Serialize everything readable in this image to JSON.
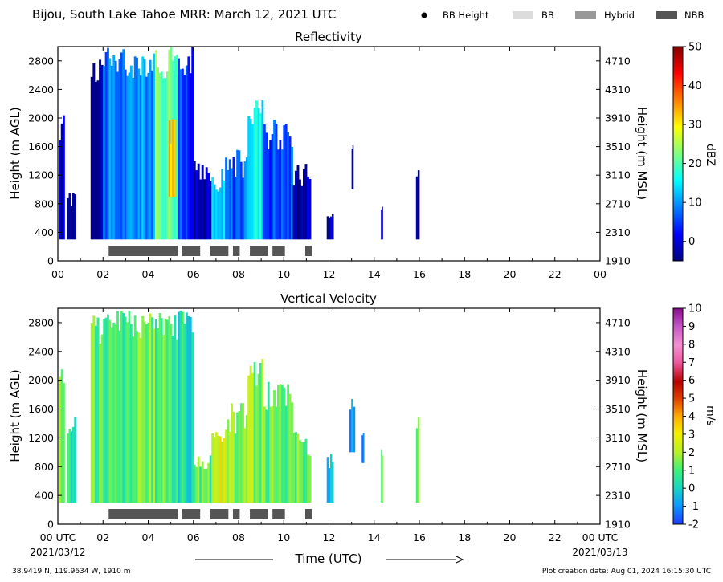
{
  "header": {
    "title": "Bijou, South Lake Tahoe MRR:  March 12, 2021 UTC",
    "legend": [
      {
        "label": "BB Height",
        "symbol": "dot",
        "color": "#000000"
      },
      {
        "label": "BB",
        "symbol": "box",
        "color": "#dcdcdc"
      },
      {
        "label": "Hybrid",
        "symbol": "box",
        "color": "#999999"
      },
      {
        "label": "NBB",
        "symbol": "box",
        "color": "#555555"
      }
    ]
  },
  "footer": {
    "location": "38.9419 N, 119.9634 W, 1910 m",
    "created": "Plot creation date: Aug 01, 2024 16:15:30 UTC",
    "time_label": "Time (UTC)",
    "start_date": "2021/03/12",
    "end_date": "2021/03/13"
  },
  "chart_data": [
    {
      "type": "heatmap",
      "title": "Reflectivity",
      "ylabel": "Height (m AGL)",
      "ylabel_right": "Height (m MSL)",
      "colorbar_label": "dBZ",
      "colorbar_ticks": [
        "0",
        "10",
        "20",
        "30",
        "40",
        "50"
      ],
      "colorbar_range": [
        -5,
        50
      ],
      "xlim": [
        0,
        24
      ],
      "ylim": [
        0,
        3000
      ],
      "x_ticks": [
        "00",
        "02",
        "04",
        "06",
        "08",
        "10",
        "12",
        "14",
        "16",
        "18",
        "20",
        "22",
        "00"
      ],
      "y_ticks": [
        "0",
        "400",
        "800",
        "1200",
        "1600",
        "2000",
        "2400",
        "2800"
      ],
      "y_ticks_right": [
        "1910",
        "2310",
        "2710",
        "3110",
        "3510",
        "3910",
        "4310",
        "4710"
      ],
      "echoes": [
        {
          "start": 0.05,
          "end": 0.3,
          "top": 2100,
          "bottom": 300,
          "value": -2
        },
        {
          "start": 0.4,
          "end": 0.8,
          "top": 1000,
          "bottom": 300,
          "value": -3
        },
        {
          "start": 1.45,
          "end": 2.0,
          "top": 2900,
          "bottom": 300,
          "value": -2
        },
        {
          "start": 2.0,
          "end": 3.2,
          "top": 3000,
          "bottom": 300,
          "value": 8
        },
        {
          "start": 3.2,
          "end": 4.3,
          "top": 3000,
          "bottom": 300,
          "value": 10
        },
        {
          "start": 4.3,
          "end": 5.3,
          "top": 3000,
          "bottom": 300,
          "value": 22
        },
        {
          "start": 4.9,
          "end": 5.2,
          "top": 2000,
          "bottom": 900,
          "value": 33
        },
        {
          "start": 5.3,
          "end": 6.0,
          "top": 3000,
          "bottom": 300,
          "value": 5
        },
        {
          "start": 6.0,
          "end": 6.8,
          "top": 1500,
          "bottom": 300,
          "value": -2
        },
        {
          "start": 6.8,
          "end": 7.4,
          "top": 1300,
          "bottom": 300,
          "value": 12
        },
        {
          "start": 7.4,
          "end": 8.4,
          "top": 1600,
          "bottom": 300,
          "value": 7
        },
        {
          "start": 8.4,
          "end": 9.1,
          "top": 2300,
          "bottom": 300,
          "value": 16
        },
        {
          "start": 9.1,
          "end": 10.4,
          "top": 2000,
          "bottom": 300,
          "value": 6
        },
        {
          "start": 10.4,
          "end": 11.2,
          "top": 1400,
          "bottom": 300,
          "value": -2
        },
        {
          "start": 11.9,
          "end": 12.2,
          "top": 700,
          "bottom": 300,
          "value": -2
        },
        {
          "start": 13.0,
          "end": 13.08,
          "top": 1700,
          "bottom": 1000,
          "value": -3
        },
        {
          "start": 14.3,
          "end": 14.38,
          "top": 850,
          "bottom": 300,
          "value": -3
        },
        {
          "start": 15.85,
          "end": 16.0,
          "top": 1300,
          "bottom": 300,
          "value": -2
        }
      ],
      "bb_types": [
        {
          "start": 2.25,
          "end": 5.3,
          "type": "NBB"
        },
        {
          "start": 5.5,
          "end": 6.3,
          "type": "NBB"
        },
        {
          "start": 6.75,
          "end": 7.55,
          "type": "NBB"
        },
        {
          "start": 7.75,
          "end": 8.05,
          "type": "NBB"
        },
        {
          "start": 8.5,
          "end": 9.3,
          "type": "NBB"
        },
        {
          "start": 9.5,
          "end": 10.05,
          "type": "NBB"
        },
        {
          "start": 10.95,
          "end": 11.25,
          "type": "NBB"
        }
      ]
    },
    {
      "type": "heatmap",
      "title": "Vertical Velocity",
      "ylabel": "Height (m AGL)",
      "ylabel_right": "Height (m MSL)",
      "colorbar_label": "m/s",
      "colorbar_ticks": [
        "-2",
        "-1",
        "0",
        "1",
        "2",
        "3",
        "4",
        "5",
        "6",
        "7",
        "8",
        "9",
        "10"
      ],
      "colorbar_range": [
        -2,
        10
      ],
      "xlim": [
        0,
        24
      ],
      "ylim": [
        0,
        3000
      ],
      "x_ticks": [
        "00 UTC",
        "02",
        "04",
        "06",
        "08",
        "10",
        "12",
        "14",
        "16",
        "18",
        "20",
        "22",
        "00 UTC"
      ],
      "y_ticks": [
        "0",
        "400",
        "800",
        "1200",
        "1600",
        "2000",
        "2400",
        "2800"
      ],
      "y_ticks_right": [
        "1910",
        "2310",
        "2710",
        "3110",
        "3510",
        "3910",
        "4310",
        "4710"
      ],
      "echoes": [
        {
          "start": 0.05,
          "end": 0.3,
          "top": 2200,
          "bottom": 300,
          "value": 1.3
        },
        {
          "start": 0.4,
          "end": 0.8,
          "top": 1500,
          "bottom": 300,
          "value": 0.6
        },
        {
          "start": 1.45,
          "end": 2.0,
          "top": 2900,
          "bottom": 300,
          "value": 1.2
        },
        {
          "start": 2.0,
          "end": 3.2,
          "top": 3000,
          "bottom": 300,
          "value": 0.8
        },
        {
          "start": 3.2,
          "end": 4.3,
          "top": 3000,
          "bottom": 300,
          "value": 1.3
        },
        {
          "start": 4.3,
          "end": 5.3,
          "top": 3000,
          "bottom": 300,
          "value": 1.0
        },
        {
          "start": 5.3,
          "end": 6.0,
          "top": 3000,
          "bottom": 300,
          "value": 0.3
        },
        {
          "start": 6.0,
          "end": 6.8,
          "top": 1000,
          "bottom": 300,
          "value": 1.1
        },
        {
          "start": 6.8,
          "end": 7.4,
          "top": 1400,
          "bottom": 300,
          "value": 2.6
        },
        {
          "start": 7.4,
          "end": 8.4,
          "top": 1700,
          "bottom": 300,
          "value": 1.8
        },
        {
          "start": 8.4,
          "end": 9.1,
          "top": 2300,
          "bottom": 300,
          "value": 1.6
        },
        {
          "start": 9.1,
          "end": 10.4,
          "top": 2000,
          "bottom": 300,
          "value": 1.2
        },
        {
          "start": 10.4,
          "end": 11.2,
          "top": 1300,
          "bottom": 300,
          "value": 1.4
        },
        {
          "start": 11.9,
          "end": 12.2,
          "top": 1000,
          "bottom": 300,
          "value": -0.6
        },
        {
          "start": 12.9,
          "end": 13.15,
          "top": 1750,
          "bottom": 1000,
          "value": -1.3
        },
        {
          "start": 13.45,
          "end": 13.55,
          "top": 1300,
          "bottom": 850,
          "value": -1.0
        },
        {
          "start": 14.3,
          "end": 14.38,
          "top": 1150,
          "bottom": 300,
          "value": 1.3
        },
        {
          "start": 15.85,
          "end": 16.0,
          "top": 1750,
          "bottom": 300,
          "value": 0.8
        }
      ],
      "bb_types": [
        {
          "start": 2.25,
          "end": 5.3,
          "type": "NBB"
        },
        {
          "start": 5.5,
          "end": 6.3,
          "type": "NBB"
        },
        {
          "start": 6.75,
          "end": 7.55,
          "type": "NBB"
        },
        {
          "start": 7.75,
          "end": 8.05,
          "type": "NBB"
        },
        {
          "start": 8.5,
          "end": 9.3,
          "type": "NBB"
        },
        {
          "start": 9.5,
          "end": 10.05,
          "type": "NBB"
        },
        {
          "start": 10.95,
          "end": 11.25,
          "type": "NBB"
        }
      ]
    }
  ]
}
